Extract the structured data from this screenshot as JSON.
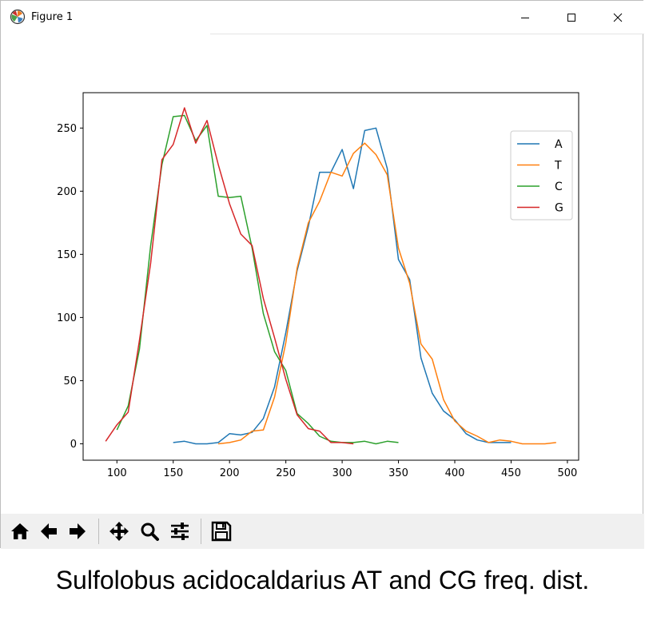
{
  "window": {
    "title": "Figure 1",
    "minimize_icon": "minimize-icon",
    "maximize_icon": "maximize-icon",
    "close_icon": "close-icon",
    "app_icon": "matplotlib-icon"
  },
  "toolbar": {
    "buttons": [
      {
        "name": "home-button",
        "icon": "home-icon"
      },
      {
        "name": "back-button",
        "icon": "arrow-left-icon"
      },
      {
        "name": "forward-button",
        "icon": "arrow-right-icon"
      },
      {
        "name": "pan-button",
        "icon": "move-icon"
      },
      {
        "name": "zoom-button",
        "icon": "magnifier-icon"
      },
      {
        "name": "subplots-button",
        "icon": "sliders-icon"
      },
      {
        "name": "save-button",
        "icon": "floppy-disk-icon"
      }
    ]
  },
  "caption": "Sulfolobus acidocaldarius AT and CG freq. dist.",
  "chart_data": {
    "type": "line",
    "title": "",
    "xlabel": "",
    "ylabel": "",
    "xlim": [
      70,
      510
    ],
    "ylim": [
      -13,
      278
    ],
    "xticks": [
      100,
      150,
      200,
      250,
      300,
      350,
      400,
      450,
      500
    ],
    "yticks": [
      0,
      50,
      100,
      150,
      200,
      250
    ],
    "grid": false,
    "legend_position": "top-right",
    "series": [
      {
        "name": "A",
        "color": "#1f77b4",
        "x": [
          150,
          160,
          170,
          180,
          190,
          200,
          210,
          220,
          230,
          240,
          250,
          260,
          270,
          280,
          290,
          300,
          310,
          320,
          330,
          340,
          350,
          360,
          370,
          380,
          390,
          400,
          410,
          420,
          430,
          440,
          450
        ],
        "y": [
          1,
          2,
          0,
          0,
          1,
          8,
          7,
          9,
          20,
          45,
          88,
          137,
          172,
          215,
          215,
          233,
          202,
          248,
          250,
          218,
          146,
          130,
          68,
          40,
          26,
          19,
          8,
          3,
          1,
          1,
          1
        ]
      },
      {
        "name": "T",
        "color": "#ff7f0e",
        "x": [
          190,
          200,
          210,
          220,
          230,
          240,
          250,
          260,
          270,
          280,
          290,
          300,
          310,
          320,
          330,
          340,
          350,
          360,
          370,
          380,
          390,
          400,
          410,
          420,
          430,
          440,
          450,
          460,
          470,
          480,
          490
        ],
        "y": [
          0,
          1,
          3,
          10,
          11,
          37,
          80,
          139,
          175,
          192,
          215,
          212,
          230,
          238,
          229,
          213,
          155,
          127,
          79,
          67,
          35,
          18,
          10,
          6,
          1,
          3,
          2,
          0,
          0,
          0,
          1
        ]
      },
      {
        "name": "C",
        "color": "#2ca02c",
        "x": [
          100,
          110,
          120,
          130,
          140,
          150,
          160,
          170,
          180,
          190,
          200,
          210,
          220,
          230,
          240,
          250,
          260,
          270,
          280,
          290,
          300,
          310,
          320,
          330,
          340,
          350
        ],
        "y": [
          11,
          30,
          75,
          157,
          221,
          259,
          260,
          240,
          252,
          196,
          195,
          196,
          155,
          103,
          73,
          58,
          24,
          16,
          6,
          2,
          1,
          1,
          2,
          0,
          2,
          1
        ]
      },
      {
        "name": "G",
        "color": "#d62728",
        "x": [
          90,
          100,
          110,
          120,
          130,
          140,
          150,
          160,
          170,
          180,
          190,
          200,
          210,
          220,
          230,
          240,
          250,
          260,
          270,
          280,
          290,
          300,
          310
        ],
        "y": [
          2,
          15,
          25,
          82,
          143,
          225,
          237,
          266,
          238,
          256,
          221,
          190,
          166,
          157,
          115,
          84,
          51,
          23,
          12,
          10,
          1,
          1,
          0
        ]
      }
    ]
  }
}
